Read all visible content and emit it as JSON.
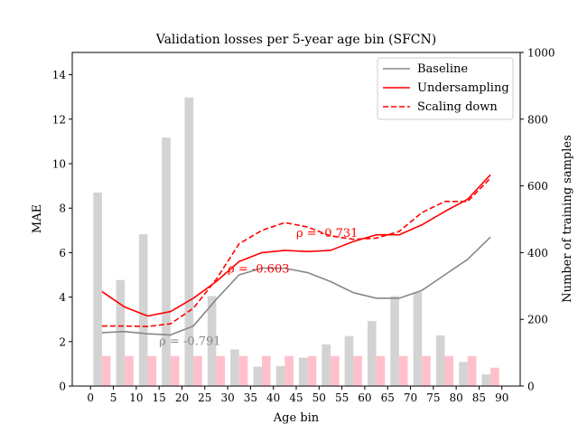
{
  "chart_data": {
    "type": "bar",
    "title": "Validation losses per 5-year age bin (SFCN)",
    "xlabel": "Age bin",
    "ylabel": "MAE",
    "y2label": "Number of training samples",
    "xlim": [
      -4,
      94
    ],
    "ylim": [
      0,
      15
    ],
    "y2lim": [
      0,
      1000
    ],
    "xticks": [
      "0",
      "5",
      "10",
      "15",
      "20",
      "25",
      "30",
      "35",
      "40",
      "45",
      "50",
      "55",
      "60",
      "65",
      "70",
      "75",
      "80",
      "85",
      "90"
    ],
    "yticks": [
      "0",
      "2",
      "4",
      "6",
      "8",
      "10",
      "12",
      "14"
    ],
    "y2ticks": [
      "0",
      "200",
      "400",
      "600",
      "800",
      "1000"
    ],
    "bin_centers": [
      2.5,
      7.5,
      12.5,
      17.5,
      22.5,
      27.5,
      32.5,
      37.5,
      42.5,
      47.5,
      52.5,
      57.5,
      62.5,
      67.5,
      72.5,
      77.5,
      82.5,
      87.5
    ],
    "series": [
      {
        "name": "Baseline",
        "kind": "line",
        "style": "solid",
        "color": "#888888",
        "values": [
          2.4,
          2.45,
          2.35,
          2.3,
          2.7,
          3.9,
          5.0,
          5.3,
          5.3,
          5.1,
          4.7,
          4.2,
          3.95,
          3.95,
          4.3,
          5.0,
          5.7,
          6.7
        ]
      },
      {
        "name": "Undersampling",
        "kind": "line",
        "style": "solid",
        "color": "#ff0000",
        "values": [
          4.25,
          3.55,
          3.15,
          3.35,
          3.95,
          4.7,
          5.6,
          6.0,
          6.1,
          6.05,
          6.1,
          6.5,
          6.8,
          6.8,
          7.25,
          7.85,
          8.4,
          9.5
        ]
      },
      {
        "name": "Scaling down",
        "kind": "line",
        "style": "dashed",
        "color": "#ff0000",
        "values": [
          2.7,
          2.7,
          2.68,
          2.8,
          3.5,
          4.8,
          6.4,
          7.0,
          7.35,
          7.15,
          6.75,
          6.6,
          6.65,
          6.95,
          7.8,
          8.3,
          8.3,
          9.35
        ]
      },
      {
        "name": "Baseline training samples",
        "kind": "bar",
        "axis": "right",
        "color": "#d3d3d3",
        "values": [
          580,
          318,
          455,
          745,
          865,
          270,
          110,
          58,
          60,
          85,
          125,
          150,
          195,
          270,
          282,
          152,
          72,
          35
        ]
      },
      {
        "name": "Undersampling training samples",
        "kind": "bar",
        "axis": "right",
        "color": "#ffc0cb",
        "values": [
          90,
          90,
          90,
          90,
          90,
          90,
          90,
          90,
          90,
          90,
          90,
          90,
          90,
          90,
          90,
          90,
          90,
          55
        ]
      }
    ],
    "annotations": [
      {
        "text": "ρ = -0.791",
        "x": 15,
        "y": 1.85,
        "color": "#888888"
      },
      {
        "text": "ρ = -0.603",
        "x": 30,
        "y": 5.1,
        "color": "#ff0000"
      },
      {
        "text": "ρ = -0.731",
        "x": 45,
        "y": 6.7,
        "color": "#ff0000"
      }
    ],
    "legend": {
      "position": "top-right"
    },
    "grid": false
  }
}
